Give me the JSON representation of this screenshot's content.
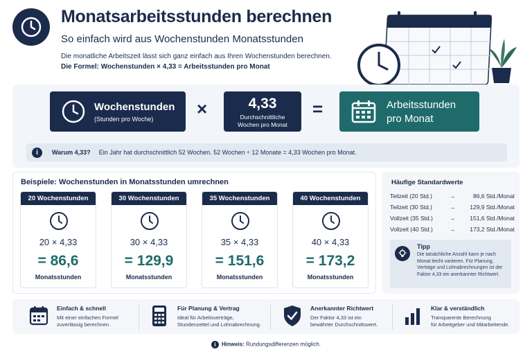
{
  "header": {
    "title": "Monatsarbeitsstunden berechnen",
    "subtitle": "So einfach wird aus Wochenstunden Monatsstunden",
    "description": "Die monatliche Arbeitszeit lässt sich ganz einfach aus Ihren Wochenstunden berechnen.",
    "formula": "Die Formel: Wochenstunden × 4,33 = Arbeitsstunden pro Monat"
  },
  "formula_band": {
    "weekly_title": "Wochenstunden",
    "weekly_sub": "(Stunden pro Woche)",
    "multiply_op": "×",
    "factor": "4,33",
    "factor_sub1": "Durchschnittliche",
    "factor_sub2": "Wochen pro Monat",
    "equals_op": "=",
    "result_line1": "Arbeitsstunden",
    "result_line2": "pro Monat"
  },
  "why": {
    "icon": "i",
    "label": "Warum 4,33?",
    "text": "Ein Jahr hat durchschnittlich 52 Wochen. 52 Wochen ÷ 12 Monate = 4,33 Wochen pro Monat."
  },
  "examples": {
    "title": "Beispiele: Wochenstunden in Monatsstunden umrechnen",
    "cards": [
      {
        "header": "20 Wochenstunden",
        "formula": "20 × 4,33",
        "result": "= 86,6",
        "unit": "Monatsstunden"
      },
      {
        "header": "30 Wochenstunden",
        "formula": "30 × 4,33",
        "result": "= 129,9",
        "unit": "Monatsstunden"
      },
      {
        "header": "35 Wochenstunden",
        "formula": "35 × 4,33",
        "result": "= 151,6",
        "unit": "Monatsstunden"
      },
      {
        "header": "40 Wochenstunden",
        "formula": "40 × 4,33",
        "result": "= 173,2",
        "unit": "Monatsstunden"
      }
    ]
  },
  "standards": {
    "title": "Häufige Standardwerte",
    "arrow": "→",
    "rows": [
      {
        "label": "Teilzeit (20 Std.)",
        "value": "86,6 Std./Monat"
      },
      {
        "label": "Teilzeit (30 Std.)",
        "value": "129,9 Std./Monat"
      },
      {
        "label": "Vollzeit (35 Std.)",
        "value": "151,6 Std./Monat"
      },
      {
        "label": "Vollzeit (40 Std.)",
        "value": "173,2 Std./Monat"
      }
    ],
    "tip_title": "Tipp",
    "tip_text": "Die tatsächliche Anzahl kann je nach Monat leicht variieren. Für Planung, Verträge und Lohnabrechnungen ist der Faktor 4,33 ein anerkannter Richtwert."
  },
  "features": [
    {
      "icon": "calendar-icon",
      "title": "Einfach & schnell",
      "line1": "Mit einer einfachen Formel",
      "line2": "zuverlässig berechnen."
    },
    {
      "icon": "calculator-icon",
      "title": "Für Planung & Vertrag",
      "line1": "Ideal für Arbeitsverträge,",
      "line2": "Stundenzettel und Lohnabrechnung."
    },
    {
      "icon": "shield-check-icon",
      "title": "Anerkannter Richtwert",
      "line1": "Der Faktor 4,33 ist ein",
      "line2": "bewährter Durchschnittswert."
    },
    {
      "icon": "bar-chart-icon",
      "title": "Klar & verständlich",
      "line1": "Transparente Berechnung",
      "line2": "für Arbeitgeber und Mitarbeitende."
    }
  ],
  "hint": {
    "label": "Hinweis:",
    "text": "Rundungsdifferenzen möglich."
  },
  "colors": {
    "navy": "#1b2b4b",
    "teal": "#1f6b6b",
    "panel": "#f4f6f9"
  }
}
